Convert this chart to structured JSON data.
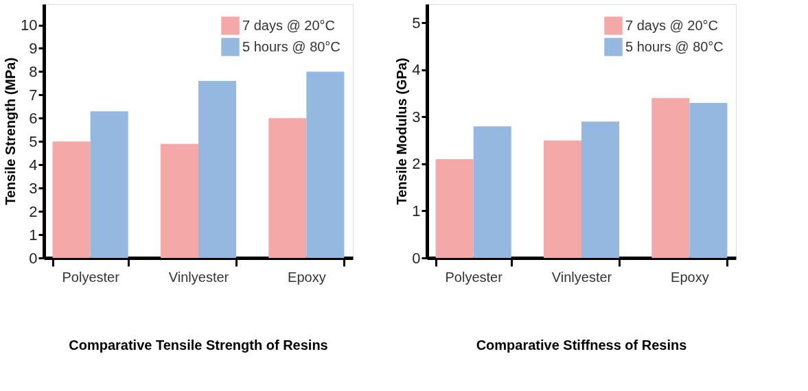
{
  "chart_data": [
    {
      "type": "bar",
      "title": "Comparative Tensile Strength of Resins",
      "ylabel": "Tensile Strength (MPa)",
      "categories": [
        "Polyester",
        "Vinlyester",
        "Epoxy"
      ],
      "series": [
        {
          "name": "7 days @ 20°C",
          "color": "#f4a9a8",
          "values": [
            5.0,
            4.9,
            6.0
          ]
        },
        {
          "name": "5 hours @ 80°C",
          "color": "#95b8e0",
          "values": [
            6.3,
            7.6,
            8.0
          ]
        }
      ],
      "ylim": [
        0,
        10.9
      ],
      "yticks": [
        0,
        1,
        2,
        3,
        4,
        5,
        6,
        7,
        8,
        9,
        10
      ],
      "grid": false,
      "legend": "top right"
    },
    {
      "type": "bar",
      "title": "Comparative Stiffness of Resins",
      "ylabel": "Tensile Modulus (GPa)",
      "categories": [
        "Polyester",
        "Vinlyester",
        "Epoxy"
      ],
      "series": [
        {
          "name": "7 days @ 20°C",
          "color": "#f4a9a8",
          "values": [
            2.1,
            2.5,
            3.4
          ]
        },
        {
          "name": "5 hours @ 80°C",
          "color": "#95b8e0",
          "values": [
            2.8,
            2.9,
            3.3
          ]
        }
      ],
      "ylim": [
        0,
        5.4
      ],
      "yticks": [
        0,
        1,
        2,
        3,
        4,
        5
      ],
      "grid": false,
      "legend": "top right"
    }
  ]
}
